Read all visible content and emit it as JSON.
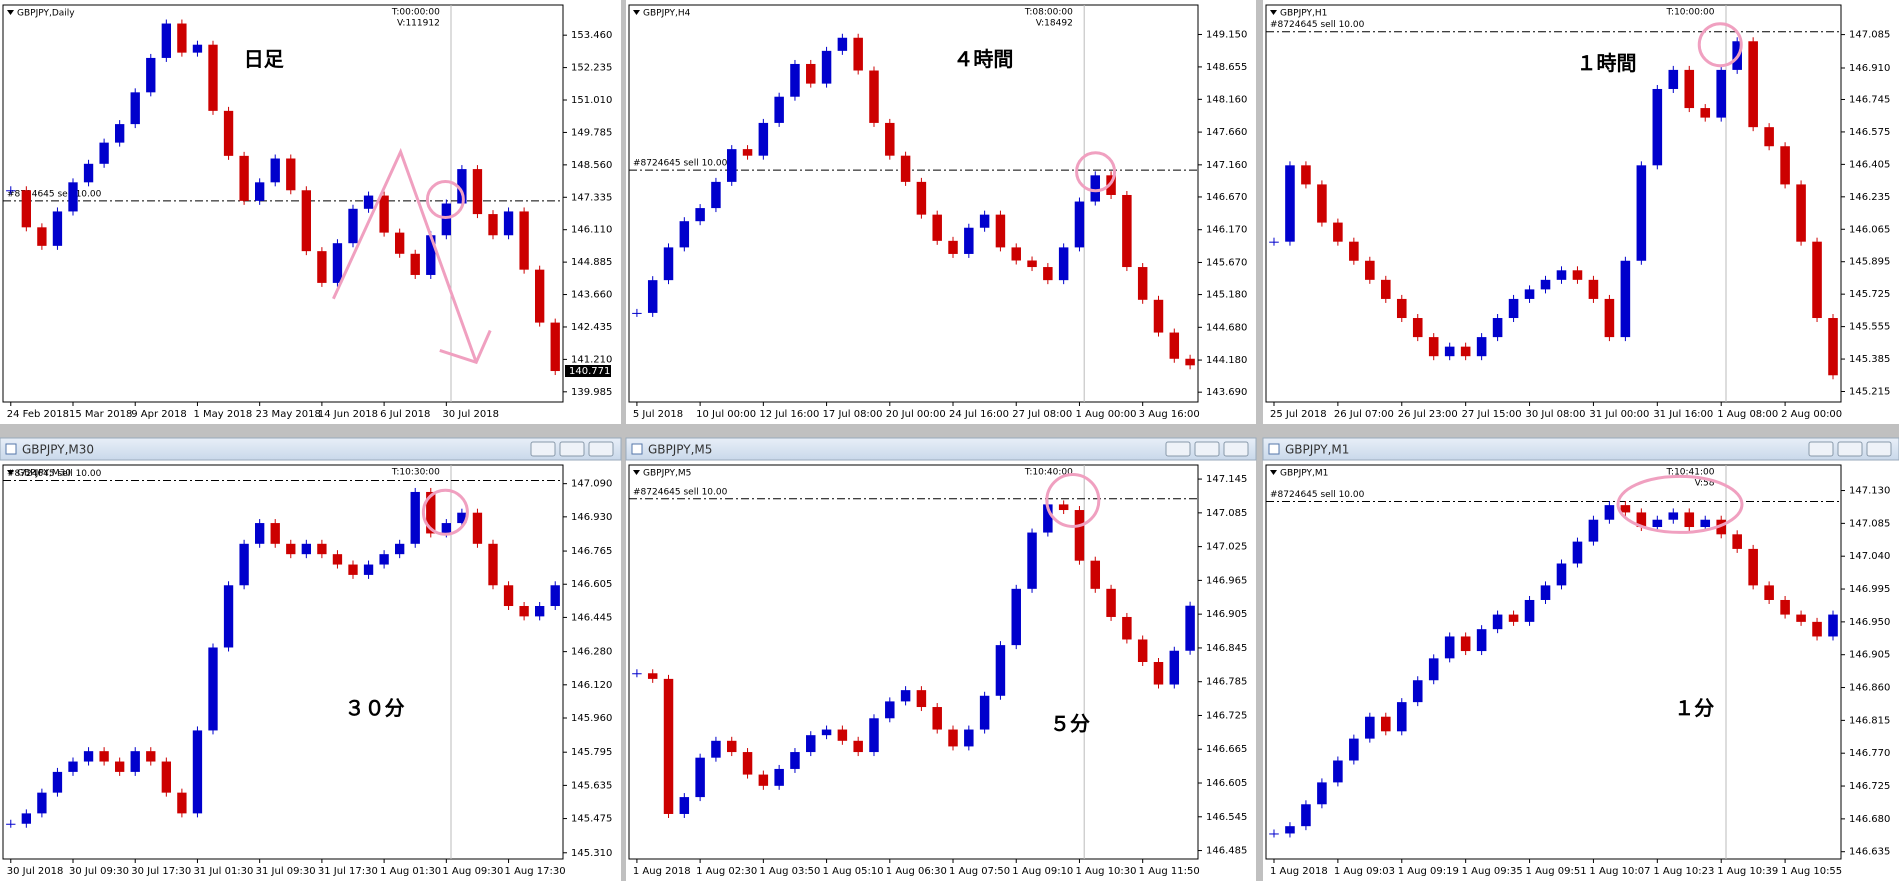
{
  "chart_data": [
    {
      "type": "candlestick",
      "title": "GBPJPY,Daily",
      "info": [
        "T:00:00:00",
        "V:111912"
      ],
      "order_label": "#8724645 sell 10.00",
      "order_level": 147.2,
      "annotation": "日足",
      "current_price": 140.771,
      "up_color": "#0000cc",
      "down_color": "#cc0000",
      "categories": [
        "24 Feb 2018",
        null,
        null,
        null,
        "15 Mar 2018",
        null,
        null,
        null,
        "9 Apr 2018",
        null,
        null,
        null,
        "1 May 2018",
        null,
        null,
        null,
        "23 May 2018",
        null,
        null,
        null,
        "14 Jun 2018",
        null,
        null,
        null,
        "6 Jul 2018",
        null,
        null,
        null,
        "30 Jul 2018",
        null,
        null,
        null,
        null,
        null,
        null,
        null
      ],
      "values": [
        147.6,
        146.2,
        145.5,
        146.8,
        147.9,
        148.6,
        149.4,
        150.1,
        151.3,
        152.6,
        153.9,
        152.8,
        153.1,
        150.6,
        148.9,
        147.2,
        147.9,
        148.8,
        147.6,
        145.3,
        144.1,
        145.6,
        146.9,
        147.4,
        146.0,
        145.2,
        144.4,
        145.9,
        147.1,
        148.4,
        146.7,
        145.9,
        146.8,
        144.6,
        142.6,
        140.77
      ],
      "ylim": [
        139.6,
        154.6
      ],
      "yticks": [
        {
          "value": 153.46,
          "label": "153.460"
        },
        152.235,
        {
          "value": 151.01,
          "label": "151.010"
        },
        149.785,
        {
          "value": 148.56,
          "label": "148.560"
        },
        147.335,
        {
          "value": 146.11,
          "label": "146.110"
        },
        144.885,
        {
          "value": 143.66,
          "label": "143.660"
        },
        142.435,
        {
          "value": 141.21,
          "label": "141.210"
        },
        139.985
      ]
    },
    {
      "type": "candlestick",
      "title": "GBPJPY,H4",
      "info": [
        "T:08:00:00",
        "V:18492"
      ],
      "order_label": "#8724645 sell 10.00",
      "order_level": 147.08,
      "annotation": "４時間",
      "up_color": "#0000cc",
      "down_color": "#cc0000",
      "categories": [
        "5 Jul 2018",
        null,
        null,
        null,
        "10 Jul 00:00",
        null,
        null,
        null,
        "12 Jul 16:00",
        null,
        null,
        null,
        "17 Jul 08:00",
        null,
        null,
        null,
        "20 Jul 00:00",
        null,
        null,
        null,
        "24 Jul 16:00",
        null,
        null,
        null,
        "27 Jul 08:00",
        null,
        null,
        null,
        "1 Aug 00:00",
        null,
        null,
        null,
        "3 Aug 16:00",
        null,
        null,
        null
      ],
      "values": [
        144.9,
        145.4,
        145.9,
        146.3,
        146.5,
        146.9,
        147.4,
        147.3,
        147.8,
        148.2,
        148.7,
        148.4,
        148.9,
        149.1,
        148.6,
        147.8,
        147.3,
        146.9,
        146.4,
        146.0,
        145.8,
        146.2,
        146.4,
        145.9,
        145.7,
        145.6,
        145.4,
        145.9,
        146.6,
        147.0,
        146.7,
        145.6,
        145.1,
        144.6,
        144.2,
        144.1
      ],
      "ylim": [
        143.54,
        149.6
      ],
      "yticks": [
        {
          "value": 149.15,
          "label": "149.150"
        },
        148.655,
        {
          "value": 148.16,
          "label": "148.160"
        },
        {
          "value": 147.66,
          "label": "147.660"
        },
        {
          "value": 147.16,
          "label": "147.160"
        },
        {
          "value": 146.67,
          "label": "146.670"
        },
        {
          "value": 146.17,
          "label": "146.170"
        },
        {
          "value": 145.67,
          "label": "145.670"
        },
        {
          "value": 145.18,
          "label": "145.180"
        },
        {
          "value": 144.68,
          "label": "144.680"
        },
        {
          "value": 144.18,
          "label": "144.180"
        },
        {
          "value": 143.69,
          "label": "143.690"
        }
      ]
    },
    {
      "type": "candlestick",
      "title": "GBPJPY,H1",
      "info": [
        "T:10:00:00"
      ],
      "order_label": "#8724645 sell 10.00",
      "order_level": 147.1,
      "annotation": "１時間",
      "up_color": "#0000cc",
      "down_color": "#cc0000",
      "categories": [
        "25 Jul 2018",
        null,
        null,
        null,
        "26 Jul 07:00",
        null,
        null,
        null,
        "26 Jul 23:00",
        null,
        null,
        null,
        "27 Jul 15:00",
        null,
        null,
        null,
        "30 Jul 08:00",
        null,
        null,
        null,
        "31 Jul 00:00",
        null,
        null,
        null,
        "31 Jul 16:00",
        null,
        null,
        null,
        "1 Aug 08:00",
        null,
        null,
        null,
        "2 Aug 00:00",
        null,
        null,
        null
      ],
      "values": [
        146.0,
        146.4,
        146.3,
        146.1,
        146.0,
        145.9,
        145.8,
        145.7,
        145.6,
        145.5,
        145.4,
        145.45,
        145.4,
        145.5,
        145.6,
        145.7,
        145.75,
        145.8,
        145.85,
        145.8,
        145.7,
        145.5,
        145.9,
        146.4,
        146.8,
        146.9,
        146.7,
        146.65,
        146.9,
        147.05,
        146.6,
        146.5,
        146.3,
        146.0,
        145.6,
        145.3
      ],
      "ylim": [
        145.16,
        147.24
      ],
      "yticks": [
        147.085,
        {
          "value": 146.91,
          "label": "146.910"
        },
        146.745,
        146.575,
        146.405,
        146.235,
        146.065,
        145.895,
        145.725,
        145.555,
        145.385,
        145.215
      ]
    },
    {
      "type": "candlestick",
      "title": "GBPJPY,M30",
      "window_title": "GBPJPY,M30",
      "info": [
        "T:10:30:00"
      ],
      "order_label": "#8724645 sell 10.00",
      "order_level": 147.105,
      "annotation": "３０分",
      "up_color": "#0000cc",
      "down_color": "#cc0000",
      "categories": [
        "30 Jul 2018",
        null,
        null,
        null,
        "30 Jul 09:30",
        null,
        null,
        null,
        "30 Jul 17:30",
        null,
        null,
        null,
        "31 Jul 01:30",
        null,
        null,
        null,
        "31 Jul 09:30",
        null,
        null,
        null,
        "31 Jul 17:30",
        null,
        null,
        null,
        "1 Aug 01:30",
        null,
        null,
        null,
        "1 Aug 09:30",
        null,
        null,
        null,
        "1 Aug 17:30",
        null,
        null,
        null
      ],
      "values": [
        145.45,
        145.5,
        145.6,
        145.7,
        145.75,
        145.8,
        145.75,
        145.7,
        145.8,
        145.75,
        145.6,
        145.5,
        145.9,
        146.3,
        146.6,
        146.8,
        146.9,
        146.8,
        146.75,
        146.8,
        146.75,
        146.7,
        146.65,
        146.7,
        146.75,
        146.8,
        147.05,
        146.85,
        146.9,
        146.95,
        146.8,
        146.6,
        146.5,
        146.45,
        146.5,
        146.6
      ],
      "ylim": [
        145.28,
        147.18
      ],
      "yticks": [
        {
          "value": 147.09,
          "label": "147.090"
        },
        {
          "value": 146.93,
          "label": "146.930"
        },
        146.765,
        146.605,
        146.445,
        {
          "value": 146.28,
          "label": "146.280"
        },
        {
          "value": 146.12,
          "label": "146.120"
        },
        {
          "value": 145.96,
          "label": "145.960"
        },
        145.795,
        145.635,
        145.475,
        {
          "value": 145.31,
          "label": "145.310"
        }
      ]
    },
    {
      "type": "candlestick",
      "title": "GBPJPY,M5",
      "window_title": "GBPJPY,M5",
      "info": [
        "T:10:40:00"
      ],
      "order_label": "#8724645 sell 10.00",
      "order_level": 147.11,
      "annotation": "５分",
      "up_color": "#0000cc",
      "down_color": "#cc0000",
      "categories": [
        "1 Aug 2018",
        null,
        null,
        null,
        "1 Aug 02:30",
        null,
        null,
        null,
        "1 Aug 03:50",
        null,
        null,
        null,
        "1 Aug 05:10",
        null,
        null,
        null,
        "1 Aug 06:30",
        null,
        null,
        null,
        "1 Aug 07:50",
        null,
        null,
        null,
        "1 Aug 09:10",
        null,
        null,
        null,
        "1 Aug 10:30",
        null,
        null,
        null,
        "1 Aug 11:50",
        null,
        null,
        null
      ],
      "values": [
        146.8,
        146.79,
        146.55,
        146.58,
        146.65,
        146.68,
        146.66,
        146.62,
        146.6,
        146.63,
        146.66,
        146.69,
        146.7,
        146.68,
        146.66,
        146.72,
        146.75,
        146.77,
        146.74,
        146.7,
        146.67,
        146.7,
        146.76,
        146.85,
        146.95,
        147.05,
        147.1,
        147.09,
        147.0,
        146.95,
        146.9,
        146.86,
        146.82,
        146.78,
        146.84,
        146.92
      ],
      "ylim": [
        146.47,
        147.17
      ],
      "yticks": [
        147.145,
        147.085,
        147.025,
        146.965,
        146.905,
        146.845,
        146.785,
        146.725,
        146.665,
        146.605,
        146.545,
        146.485
      ]
    },
    {
      "type": "candlestick",
      "title": "GBPJPY,M1",
      "window_title": "GBPJPY,M1",
      "info": [
        "T:10:41:00",
        "V:58"
      ],
      "order_label": "#8724645 sell 10.00",
      "order_level": 147.115,
      "annotation": "１分",
      "up_color": "#0000cc",
      "down_color": "#cc0000",
      "categories": [
        "1 Aug 2018",
        null,
        null,
        null,
        "1 Aug 09:03",
        null,
        null,
        null,
        "1 Aug 09:19",
        null,
        null,
        null,
        "1 Aug 09:35",
        null,
        null,
        null,
        "1 Aug 09:51",
        null,
        null,
        null,
        "1 Aug 10:07",
        null,
        null,
        null,
        "1 Aug 10:23",
        null,
        null,
        null,
        "1 Aug 10:39",
        null,
        null,
        null,
        "1 Aug 10:55",
        null,
        null,
        null
      ],
      "values": [
        146.66,
        146.67,
        146.7,
        146.73,
        146.76,
        146.79,
        146.82,
        146.8,
        146.84,
        146.87,
        146.9,
        146.93,
        146.91,
        146.94,
        146.96,
        146.95,
        146.98,
        147.0,
        147.03,
        147.06,
        147.09,
        147.11,
        147.1,
        147.08,
        147.09,
        147.1,
        147.08,
        147.09,
        147.07,
        147.05,
        147.0,
        146.98,
        146.96,
        146.95,
        146.93,
        146.96
      ],
      "ylim": [
        146.625,
        147.165
      ],
      "yticks": [
        {
          "value": 147.13,
          "label": "147.130"
        },
        147.085,
        {
          "value": 147.04,
          "label": "147.040"
        },
        146.995,
        {
          "value": 146.95,
          "label": "146.950"
        },
        146.905,
        {
          "value": 146.86,
          "label": "146.860"
        },
        146.815,
        {
          "value": 146.77,
          "label": "146.770"
        },
        146.725,
        {
          "value": 146.68,
          "label": "146.680"
        },
        146.635
      ]
    }
  ]
}
